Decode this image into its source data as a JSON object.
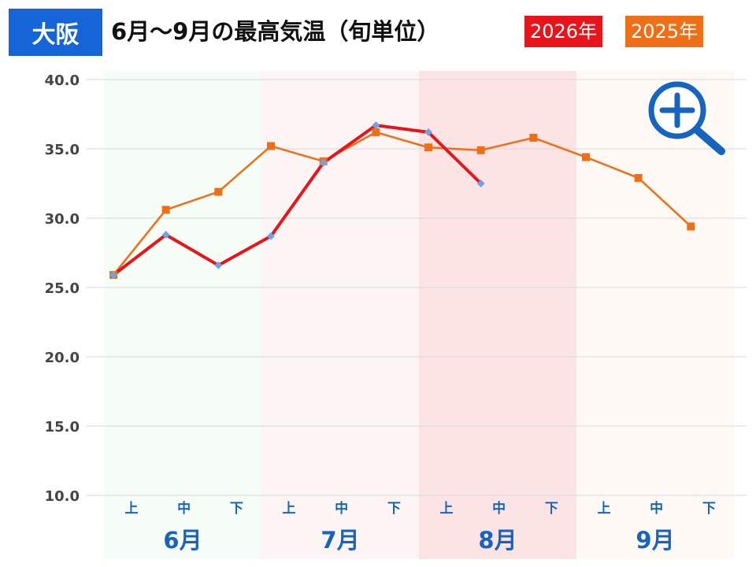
{
  "header": {
    "city": "大阪",
    "title": "6月～9月の最高気温（旬単位）",
    "legend": [
      {
        "label": "2026年",
        "color": "#e8141a"
      },
      {
        "label": "2025年",
        "color": "#ee6f16"
      }
    ]
  },
  "zoom": {
    "icon": "zoom-in-icon",
    "color": "#1565c0"
  },
  "chart_data": {
    "type": "line",
    "title": "6月～9月の最高気温（旬単位）",
    "categories": [
      "上",
      "中",
      "下",
      "上",
      "中",
      "下",
      "上",
      "中",
      "下",
      "上",
      "中",
      "下"
    ],
    "months": [
      "6月",
      "7月",
      "8月",
      "9月"
    ],
    "month_colors": [
      "#f5fdf6",
      "#fdf4f4",
      "#fce4e4",
      "#fef9f5"
    ],
    "series": [
      {
        "name": "2026年",
        "color": "#e8141a",
        "marker_color": "#6fa3e6",
        "marker": "diamond",
        "values": [
          25.9,
          28.8,
          26.6,
          28.7,
          34.0,
          36.7,
          36.2,
          32.5,
          null,
          null,
          null,
          null
        ]
      },
      {
        "name": "2025年",
        "color": "#ee6f16",
        "marker_color": "#ee6f16",
        "marker": "square",
        "values": [
          25.9,
          30.6,
          31.9,
          35.2,
          34.1,
          36.2,
          35.1,
          34.9,
          35.8,
          34.4,
          32.9,
          29.4
        ]
      }
    ],
    "ylim": [
      10,
      40
    ],
    "yticks": [
      "10.0",
      "15.0",
      "20.0",
      "25.0",
      "30.0",
      "35.0",
      "40.0"
    ],
    "grid": true,
    "legend_position": "top-right"
  }
}
